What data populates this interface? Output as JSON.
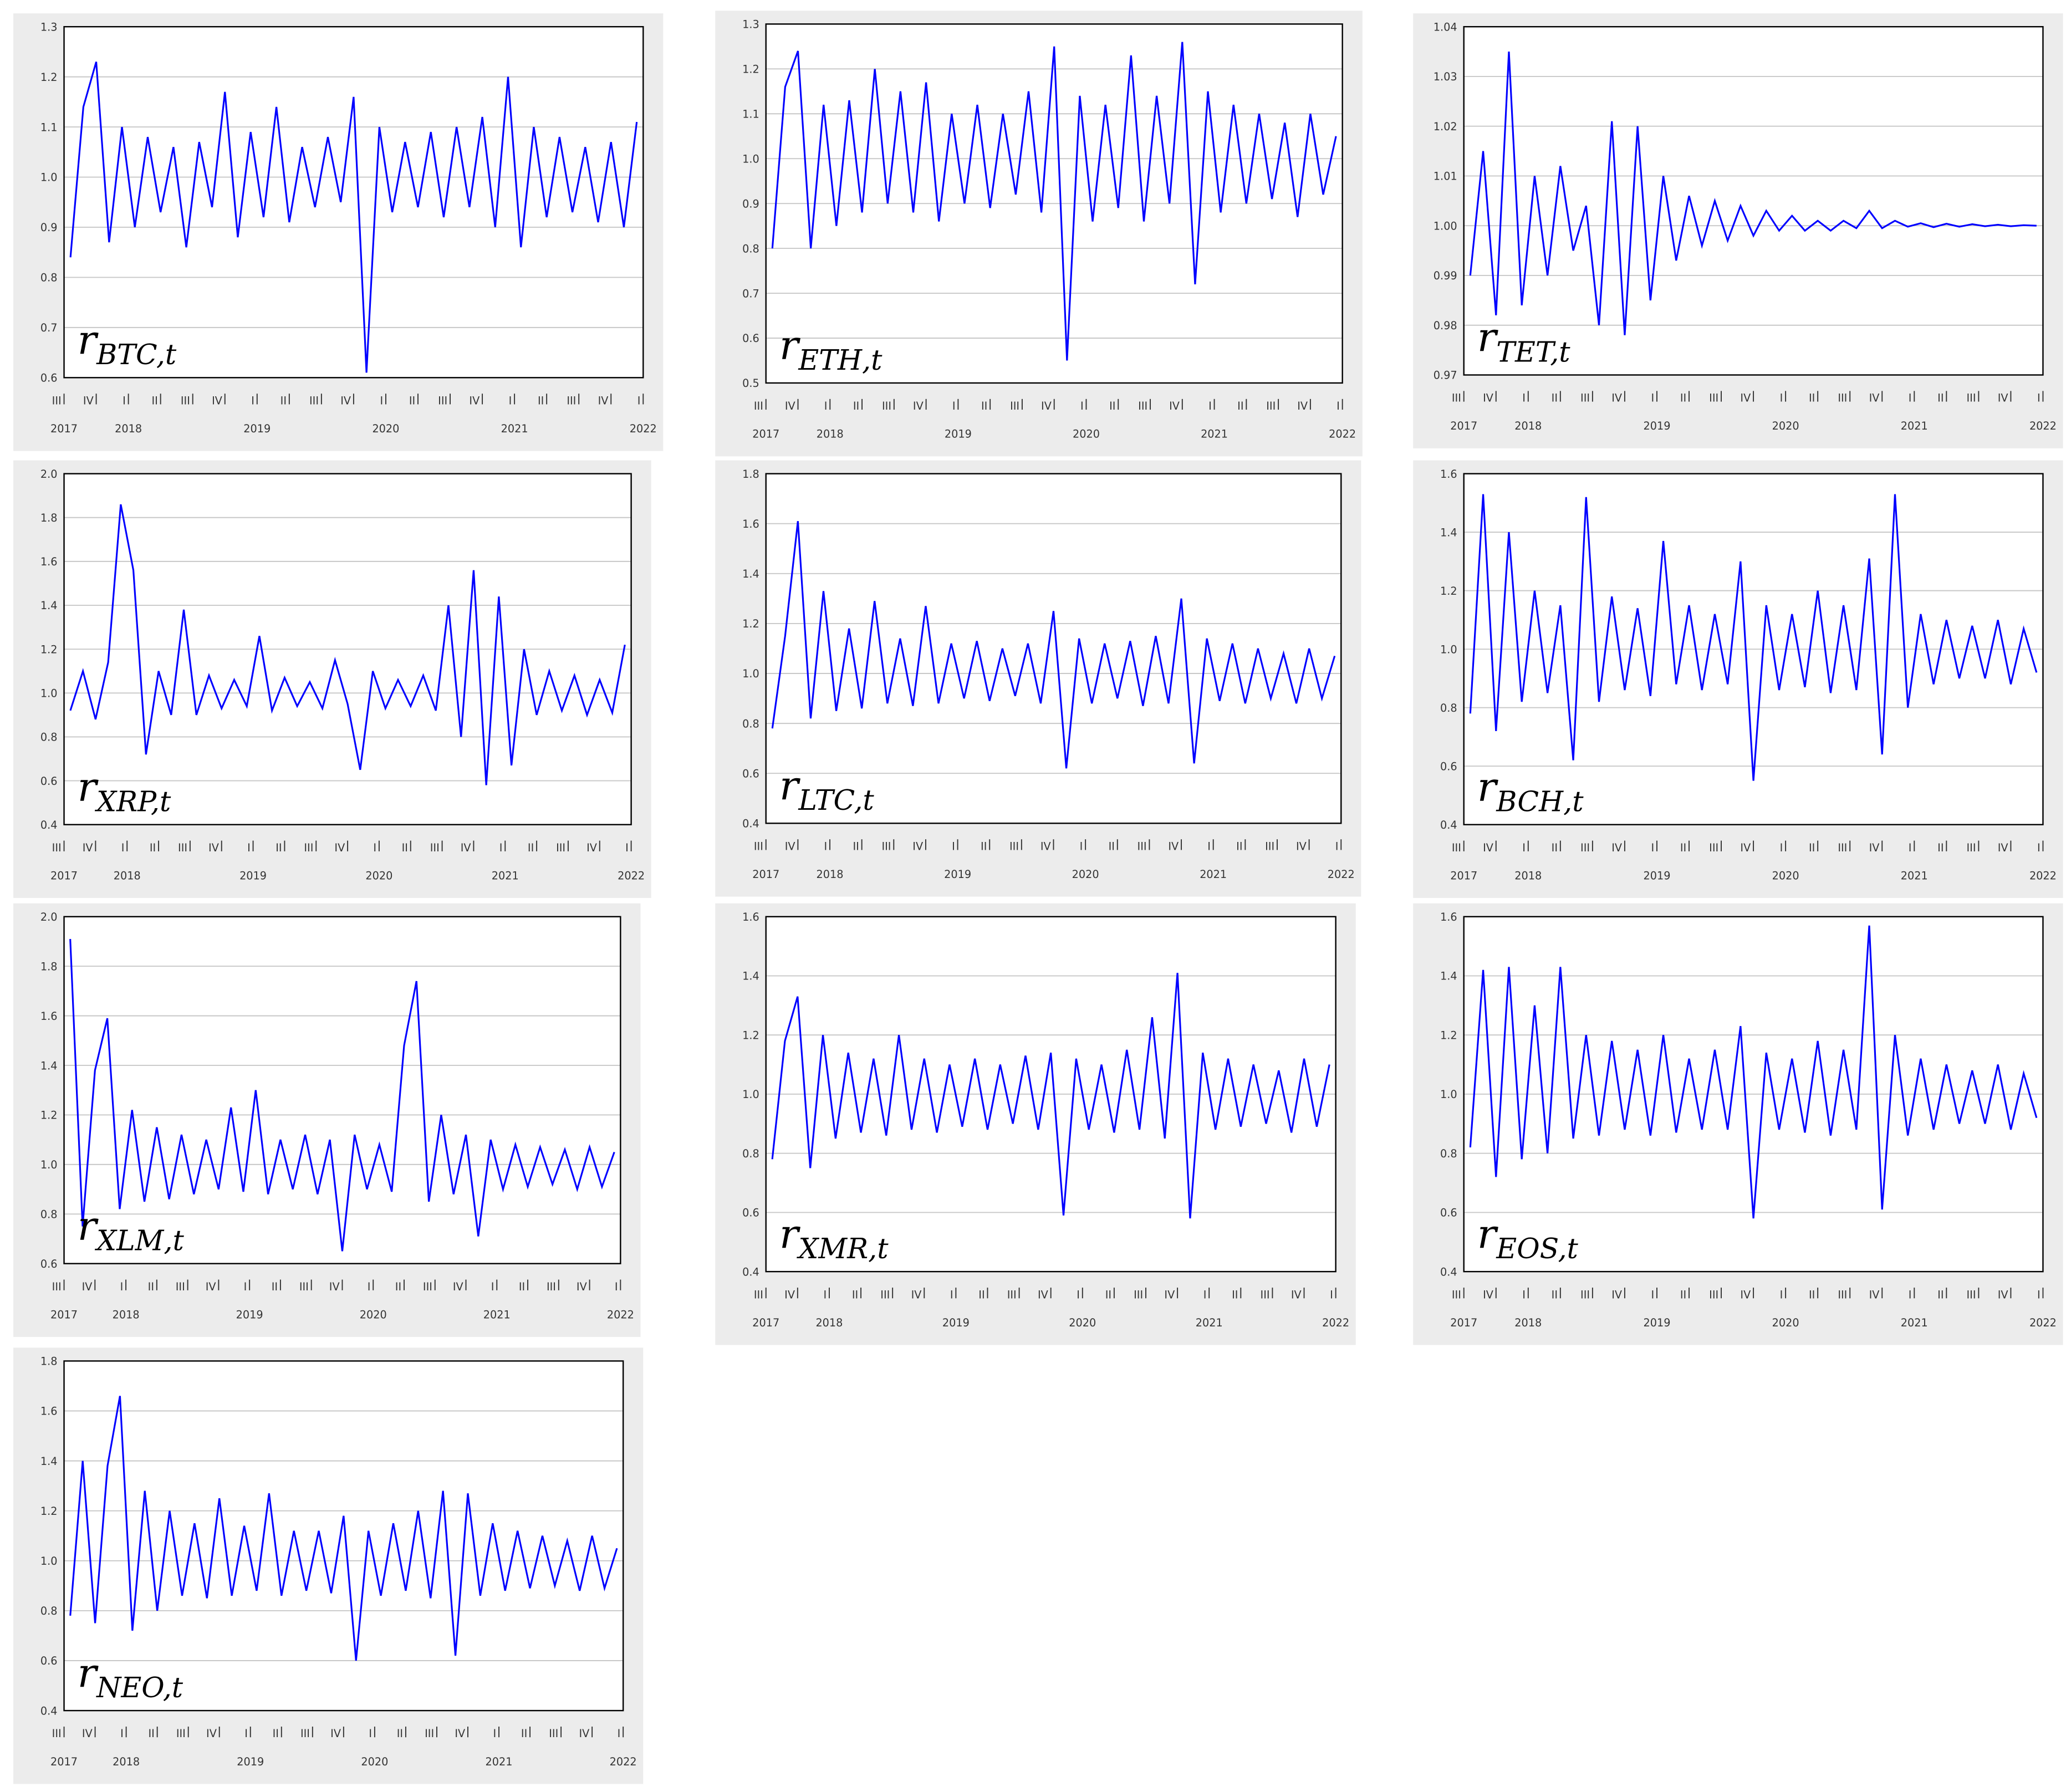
{
  "x_axis": {
    "xlim": [
      2017.5,
      2022.0
    ],
    "xticks": [
      {
        "value": 2017.5,
        "label": "III"
      },
      {
        "value": 2017.75,
        "label": "IV"
      },
      {
        "value": 2018,
        "label": "I"
      },
      {
        "value": 2018.25,
        "label": "II"
      },
      {
        "value": 2018.5,
        "label": "III"
      },
      {
        "value": 2018.75,
        "label": "IV"
      },
      {
        "value": 2019,
        "label": "I"
      },
      {
        "value": 2019.25,
        "label": "II"
      },
      {
        "value": 2019.5,
        "label": "III"
      },
      {
        "value": 2019.75,
        "label": "IV"
      },
      {
        "value": 2020,
        "label": "I"
      },
      {
        "value": 2020.25,
        "label": "II"
      },
      {
        "value": 2020.5,
        "label": "III"
      },
      {
        "value": 2020.75,
        "label": "IV"
      },
      {
        "value": 2021,
        "label": "I"
      },
      {
        "value": 2021.25,
        "label": "II"
      },
      {
        "value": 2021.5,
        "label": "III"
      },
      {
        "value": 2021.75,
        "label": "IV"
      },
      {
        "value": 2022,
        "label": "I"
      }
    ],
    "year_ticks": [
      2017,
      2018,
      2019,
      2020,
      2021,
      2022
    ],
    "x": [
      2017.55,
      2017.65,
      2017.75,
      2017.85,
      2017.95,
      2018.05,
      2018.15,
      2018.25,
      2018.35,
      2018.45,
      2018.55,
      2018.65,
      2018.75,
      2018.85,
      2018.95,
      2019.05,
      2019.15,
      2019.25,
      2019.35,
      2019.45,
      2019.55,
      2019.65,
      2019.75,
      2019.85,
      2019.95,
      2020.05,
      2020.15,
      2020.25,
      2020.35,
      2020.45,
      2020.55,
      2020.65,
      2020.75,
      2020.85,
      2020.95,
      2021.05,
      2021.15,
      2021.25,
      2021.35,
      2021.45,
      2021.55,
      2021.65,
      2021.75,
      2021.85,
      2021.95
    ]
  },
  "chart_data": [
    {
      "type": "line",
      "title_symbol": "r",
      "title_subscript": "BTC,t",
      "color": "#0000ff",
      "ylim": [
        0.6,
        1.3
      ],
      "yticks": [
        0.6,
        0.7,
        0.8,
        0.9,
        {
          "value": 1,
          "label": "1.0"
        },
        1.1,
        1.2,
        1.3
      ],
      "values": [
        0.84,
        1.14,
        1.23,
        0.87,
        1.1,
        0.9,
        1.08,
        0.93,
        1.06,
        0.86,
        1.07,
        0.94,
        1.17,
        0.88,
        1.09,
        0.92,
        1.14,
        0.91,
        1.06,
        0.94,
        1.08,
        0.95,
        1.16,
        0.61,
        1.1,
        0.93,
        1.07,
        0.94,
        1.09,
        0.92,
        1.1,
        0.94,
        1.12,
        0.9,
        1.2,
        0.86,
        1.1,
        0.92,
        1.08,
        0.93,
        1.06,
        0.91,
        1.07,
        0.9,
        1.11
      ]
    },
    {
      "type": "line",
      "title_symbol": "r",
      "title_subscript": "ETH,t",
      "color": "#0000ff",
      "ylim": [
        0.5,
        1.3
      ],
      "yticks": [
        0.5,
        0.6,
        0.7,
        0.8,
        0.9,
        {
          "value": 1,
          "label": "1.0"
        },
        1.1,
        1.2,
        1.3
      ],
      "values": [
        0.8,
        1.16,
        1.24,
        0.8,
        1.12,
        0.85,
        1.13,
        0.88,
        1.2,
        0.9,
        1.15,
        0.88,
        1.17,
        0.86,
        1.1,
        0.9,
        1.12,
        0.89,
        1.1,
        0.92,
        1.15,
        0.88,
        1.25,
        0.55,
        1.14,
        0.86,
        1.12,
        0.89,
        1.23,
        0.86,
        1.14,
        0.9,
        1.26,
        0.72,
        1.15,
        0.88,
        1.12,
        0.9,
        1.1,
        0.91,
        1.08,
        0.87,
        1.1,
        0.92,
        1.05
      ]
    },
    {
      "type": "line",
      "title_symbol": "r",
      "title_subscript": "TET,t",
      "color": "#0000ff",
      "ylim": [
        0.97,
        1.04
      ],
      "yticks": [
        0.97,
        0.98,
        0.99,
        {
          "value": 1,
          "label": "1.00"
        },
        1.01,
        1.02,
        1.03,
        1.04
      ],
      "values": [
        0.99,
        1.015,
        0.982,
        1.035,
        0.984,
        1.01,
        0.99,
        1.012,
        0.995,
        1.004,
        0.98,
        1.021,
        0.978,
        1.02,
        0.985,
        1.01,
        0.993,
        1.006,
        0.996,
        1.005,
        0.997,
        1.004,
        0.998,
        1.003,
        0.999,
        1.002,
        0.999,
        1.001,
        0.999,
        1.001,
        0.9995,
        1.003,
        0.9995,
        1.001,
        0.9998,
        1.0005,
        0.9997,
        1.0004,
        0.9998,
        1.0003,
        0.9999,
        1.0002,
        0.9999,
        1.0001,
        1.0
      ]
    },
    {
      "type": "line",
      "title_symbol": "r",
      "title_subscript": "XRP,t",
      "color": "#0000ff",
      "ylim": [
        0.4,
        2.0
      ],
      "yticks": [
        0.4,
        0.6,
        0.8,
        {
          "value": 1,
          "label": "1.0"
        },
        1.2,
        1.4,
        1.6,
        1.8,
        {
          "value": 2,
          "label": "2.0"
        }
      ],
      "values": [
        0.92,
        1.1,
        0.88,
        1.14,
        1.86,
        1.56,
        0.72,
        1.1,
        0.9,
        1.38,
        0.9,
        1.08,
        0.93,
        1.06,
        0.94,
        1.26,
        0.92,
        1.07,
        0.94,
        1.05,
        0.93,
        1.15,
        0.95,
        0.65,
        1.1,
        0.93,
        1.06,
        0.94,
        1.08,
        0.92,
        1.4,
        0.8,
        1.56,
        0.58,
        1.44,
        0.67,
        1.2,
        0.9,
        1.1,
        0.92,
        1.08,
        0.9,
        1.06,
        0.91,
        1.22
      ]
    },
    {
      "type": "line",
      "title_symbol": "r",
      "title_subscript": "LTC,t",
      "color": "#0000ff",
      "ylim": [
        0.4,
        1.8
      ],
      "yticks": [
        0.4,
        0.6,
        0.8,
        {
          "value": 1,
          "label": "1.0"
        },
        1.2,
        1.4,
        1.6,
        1.8
      ],
      "values": [
        0.78,
        1.15,
        1.61,
        0.82,
        1.33,
        0.85,
        1.18,
        0.86,
        1.29,
        0.88,
        1.14,
        0.87,
        1.27,
        0.88,
        1.12,
        0.9,
        1.13,
        0.89,
        1.1,
        0.91,
        1.12,
        0.88,
        1.25,
        0.62,
        1.14,
        0.88,
        1.12,
        0.9,
        1.13,
        0.87,
        1.15,
        0.88,
        1.3,
        0.64,
        1.14,
        0.89,
        1.12,
        0.88,
        1.1,
        0.9,
        1.08,
        0.88,
        1.1,
        0.9,
        1.07
      ]
    },
    {
      "type": "line",
      "title_symbol": "r",
      "title_subscript": "BCH,t",
      "color": "#0000ff",
      "ylim": [
        0.4,
        1.6
      ],
      "yticks": [
        0.4,
        0.6,
        0.8,
        {
          "value": 1,
          "label": "1.0"
        },
        1.2,
        1.4,
        1.6
      ],
      "values": [
        0.78,
        1.53,
        0.72,
        1.4,
        0.82,
        1.2,
        0.85,
        1.15,
        0.62,
        1.52,
        0.82,
        1.18,
        0.86,
        1.14,
        0.84,
        1.37,
        0.88,
        1.15,
        0.86,
        1.12,
        0.88,
        1.3,
        0.55,
        1.15,
        0.86,
        1.12,
        0.87,
        1.2,
        0.85,
        1.15,
        0.86,
        1.31,
        0.64,
        1.53,
        0.8,
        1.12,
        0.88,
        1.1,
        0.9,
        1.08,
        0.9,
        1.1,
        0.88,
        1.07,
        0.92
      ]
    },
    {
      "type": "line",
      "title_symbol": "r",
      "title_subscript": "XLM,t",
      "color": "#0000ff",
      "ylim": [
        0.6,
        2.0
      ],
      "yticks": [
        0.6,
        0.8,
        {
          "value": 1,
          "label": "1.0"
        },
        1.2,
        1.4,
        1.6,
        1.8,
        {
          "value": 2,
          "label": "2.0"
        }
      ],
      "values": [
        1.91,
        0.75,
        1.38,
        1.59,
        0.82,
        1.22,
        0.85,
        1.15,
        0.86,
        1.12,
        0.88,
        1.1,
        0.9,
        1.23,
        0.89,
        1.3,
        0.88,
        1.1,
        0.9,
        1.12,
        0.88,
        1.1,
        0.65,
        1.12,
        0.9,
        1.08,
        0.89,
        1.48,
        1.74,
        0.85,
        1.2,
        0.88,
        1.12,
        0.71,
        1.1,
        0.9,
        1.08,
        0.91,
        1.07,
        0.92,
        1.06,
        0.9,
        1.07,
        0.91,
        1.05
      ]
    },
    {
      "type": "line",
      "title_symbol": "r",
      "title_subscript": "XMR,t",
      "color": "#0000ff",
      "ylim": [
        0.4,
        1.6
      ],
      "yticks": [
        0.4,
        0.6,
        0.8,
        {
          "value": 1,
          "label": "1.0"
        },
        1.2,
        1.4,
        1.6
      ],
      "values": [
        0.78,
        1.18,
        1.33,
        0.75,
        1.2,
        0.85,
        1.14,
        0.87,
        1.12,
        0.86,
        1.2,
        0.88,
        1.12,
        0.87,
        1.1,
        0.89,
        1.12,
        0.88,
        1.1,
        0.9,
        1.13,
        0.88,
        1.14,
        0.59,
        1.12,
        0.88,
        1.1,
        0.87,
        1.15,
        0.88,
        1.26,
        0.85,
        1.41,
        0.58,
        1.14,
        0.88,
        1.12,
        0.89,
        1.1,
        0.9,
        1.08,
        0.87,
        1.12,
        0.89,
        1.1
      ]
    },
    {
      "type": "line",
      "title_symbol": "r",
      "title_subscript": "EOS,t",
      "color": "#0000ff",
      "ylim": [
        0.4,
        1.6
      ],
      "yticks": [
        0.4,
        0.6,
        0.8,
        {
          "value": 1,
          "label": "1.0"
        },
        1.2,
        1.4,
        1.6
      ],
      "values": [
        0.82,
        1.42,
        0.72,
        1.43,
        0.78,
        1.3,
        0.8,
        1.43,
        0.85,
        1.2,
        0.86,
        1.18,
        0.88,
        1.15,
        0.86,
        1.2,
        0.87,
        1.12,
        0.88,
        1.15,
        0.88,
        1.23,
        0.58,
        1.14,
        0.88,
        1.12,
        0.87,
        1.18,
        0.86,
        1.15,
        0.88,
        1.57,
        0.61,
        1.2,
        0.86,
        1.12,
        0.88,
        1.1,
        0.9,
        1.08,
        0.9,
        1.1,
        0.88,
        1.07,
        0.92
      ]
    },
    {
      "type": "line",
      "title_symbol": "r",
      "title_subscript": "NEO,t",
      "color": "#0000ff",
      "ylim": [
        0.4,
        1.8
      ],
      "yticks": [
        0.4,
        0.6,
        0.8,
        {
          "value": 1,
          "label": "1.0"
        },
        1.2,
        1.4,
        1.6,
        1.8
      ],
      "values": [
        0.78,
        1.4,
        0.75,
        1.38,
        1.66,
        0.72,
        1.28,
        0.8,
        1.2,
        0.86,
        1.15,
        0.85,
        1.25,
        0.86,
        1.14,
        0.88,
        1.27,
        0.86,
        1.12,
        0.88,
        1.12,
        0.87,
        1.18,
        0.6,
        1.12,
        0.86,
        1.15,
        0.88,
        1.2,
        0.85,
        1.28,
        0.62,
        1.27,
        0.86,
        1.15,
        0.88,
        1.12,
        0.89,
        1.1,
        0.9,
        1.08,
        0.88,
        1.1,
        0.89,
        1.05
      ]
    }
  ]
}
